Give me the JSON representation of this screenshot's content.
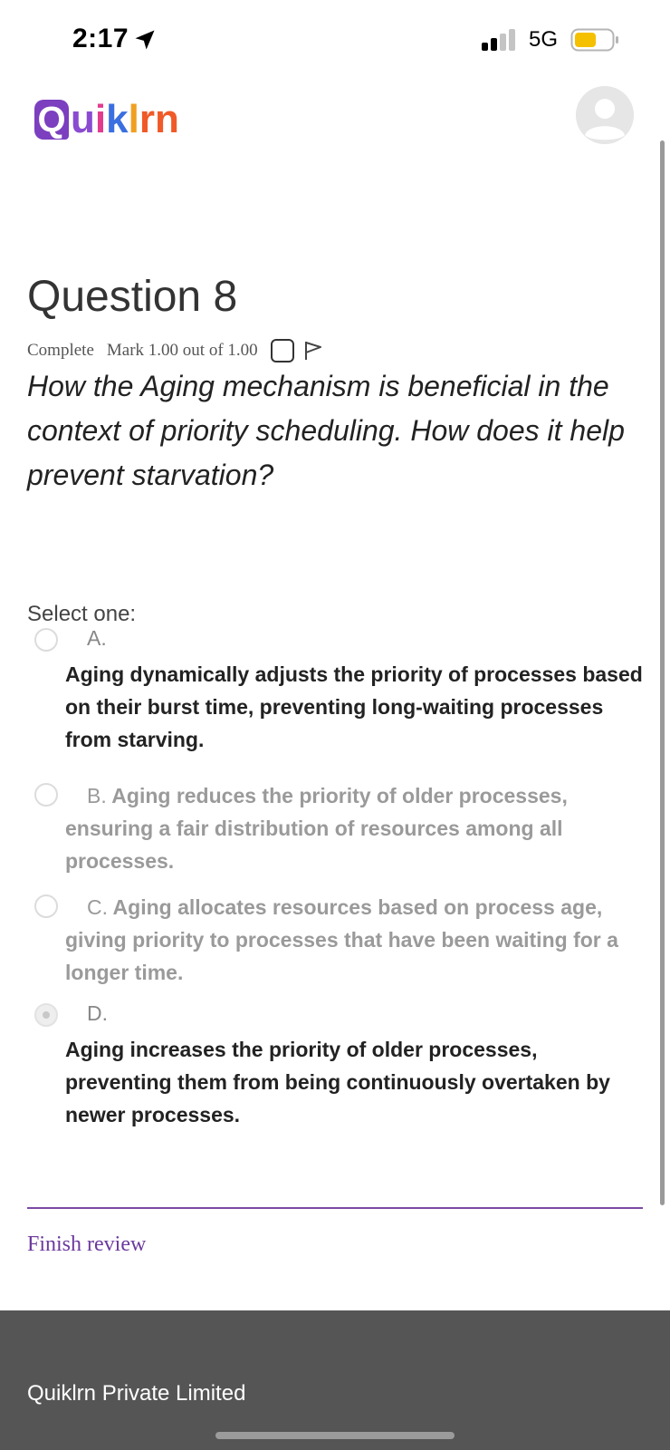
{
  "status_bar": {
    "time": "2:17",
    "network": "5G",
    "battery_color": "#f5c000"
  },
  "header": {
    "logo_letters": [
      "Q",
      "u",
      "i",
      "k",
      "l",
      "r",
      "n"
    ],
    "avatar_icon": "user-avatar-icon"
  },
  "question": {
    "title": "Question 8",
    "state": "Complete",
    "mark": "Mark 1.00 out of 1.00",
    "text": "How the Aging mechanism is beneficial in the context of priority scheduling. How does it help prevent starvation?",
    "select_label": "Select one:",
    "options": [
      {
        "letter": "A.",
        "text": "Aging dynamically adjusts the priority of processes based on their burst time, preventing long-waiting processes from starving.",
        "selected": false
      },
      {
        "letter": "B.",
        "text": "Aging reduces the priority of older processes, ensuring a fair distribution of resources among all processes.",
        "selected": false
      },
      {
        "letter": "C.",
        "text": "Aging allocates resources based on process age, giving priority to processes that have been waiting for a longer time.",
        "selected": false
      },
      {
        "letter": "D.",
        "text": "Aging increases the priority of older processes, preventing them from being continuously overtaken by newer processes.",
        "selected": true
      }
    ]
  },
  "links": {
    "finish_review": "Finish review"
  },
  "footer": {
    "company": "Quiklrn Private Limited"
  },
  "colors": {
    "accent_purple": "#6c3a9e",
    "footer_bg": "#555555"
  }
}
